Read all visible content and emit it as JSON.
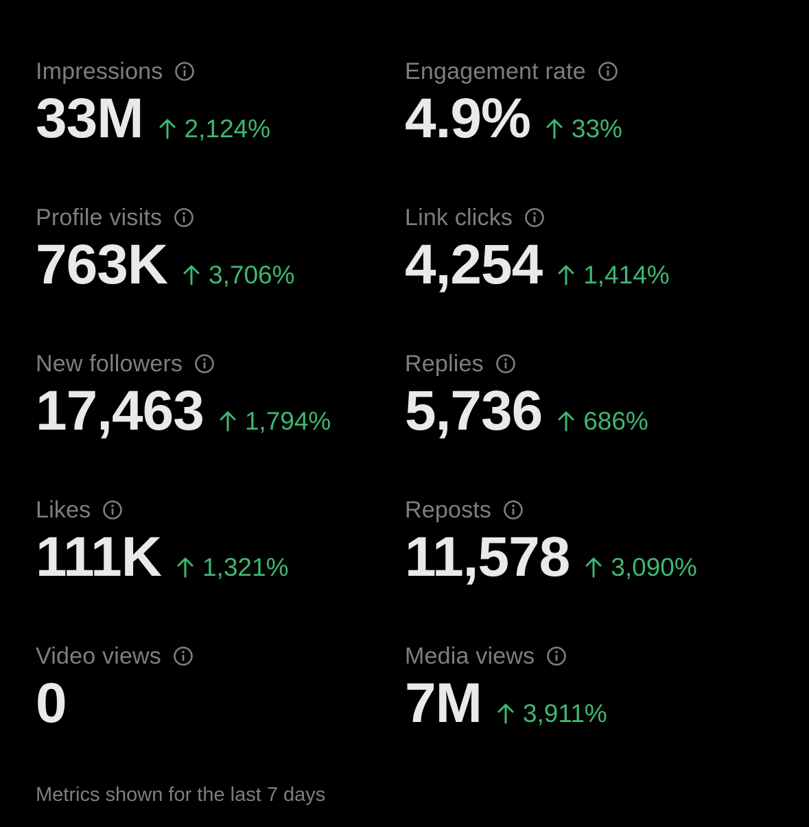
{
  "metrics": [
    {
      "label": "Impressions",
      "value": "33M",
      "change": "2,124%"
    },
    {
      "label": "Engagement rate",
      "value": "4.9%",
      "change": "33%"
    },
    {
      "label": "Profile visits",
      "value": "763K",
      "change": "3,706%"
    },
    {
      "label": "Link clicks",
      "value": "4,254",
      "change": "1,414%"
    },
    {
      "label": "New followers",
      "value": "17,463",
      "change": "1,794%"
    },
    {
      "label": "Replies",
      "value": "5,736",
      "change": "686%"
    },
    {
      "label": "Likes",
      "value": "111K",
      "change": "1,321%"
    },
    {
      "label": "Reposts",
      "value": "11,578",
      "change": "3,090%"
    },
    {
      "label": "Video views",
      "value": "0",
      "change": ""
    },
    {
      "label": "Media views",
      "value": "7M",
      "change": "3,911%"
    }
  ],
  "footnote": "Metrics shown for the last 7 days",
  "colors": {
    "background": "#000000",
    "label": "#7b7f84",
    "value": "#e7e9ea",
    "positive_change": "#3fb771"
  },
  "icons": {
    "info": "info-circle-icon",
    "trend": "arrow-up-icon"
  }
}
